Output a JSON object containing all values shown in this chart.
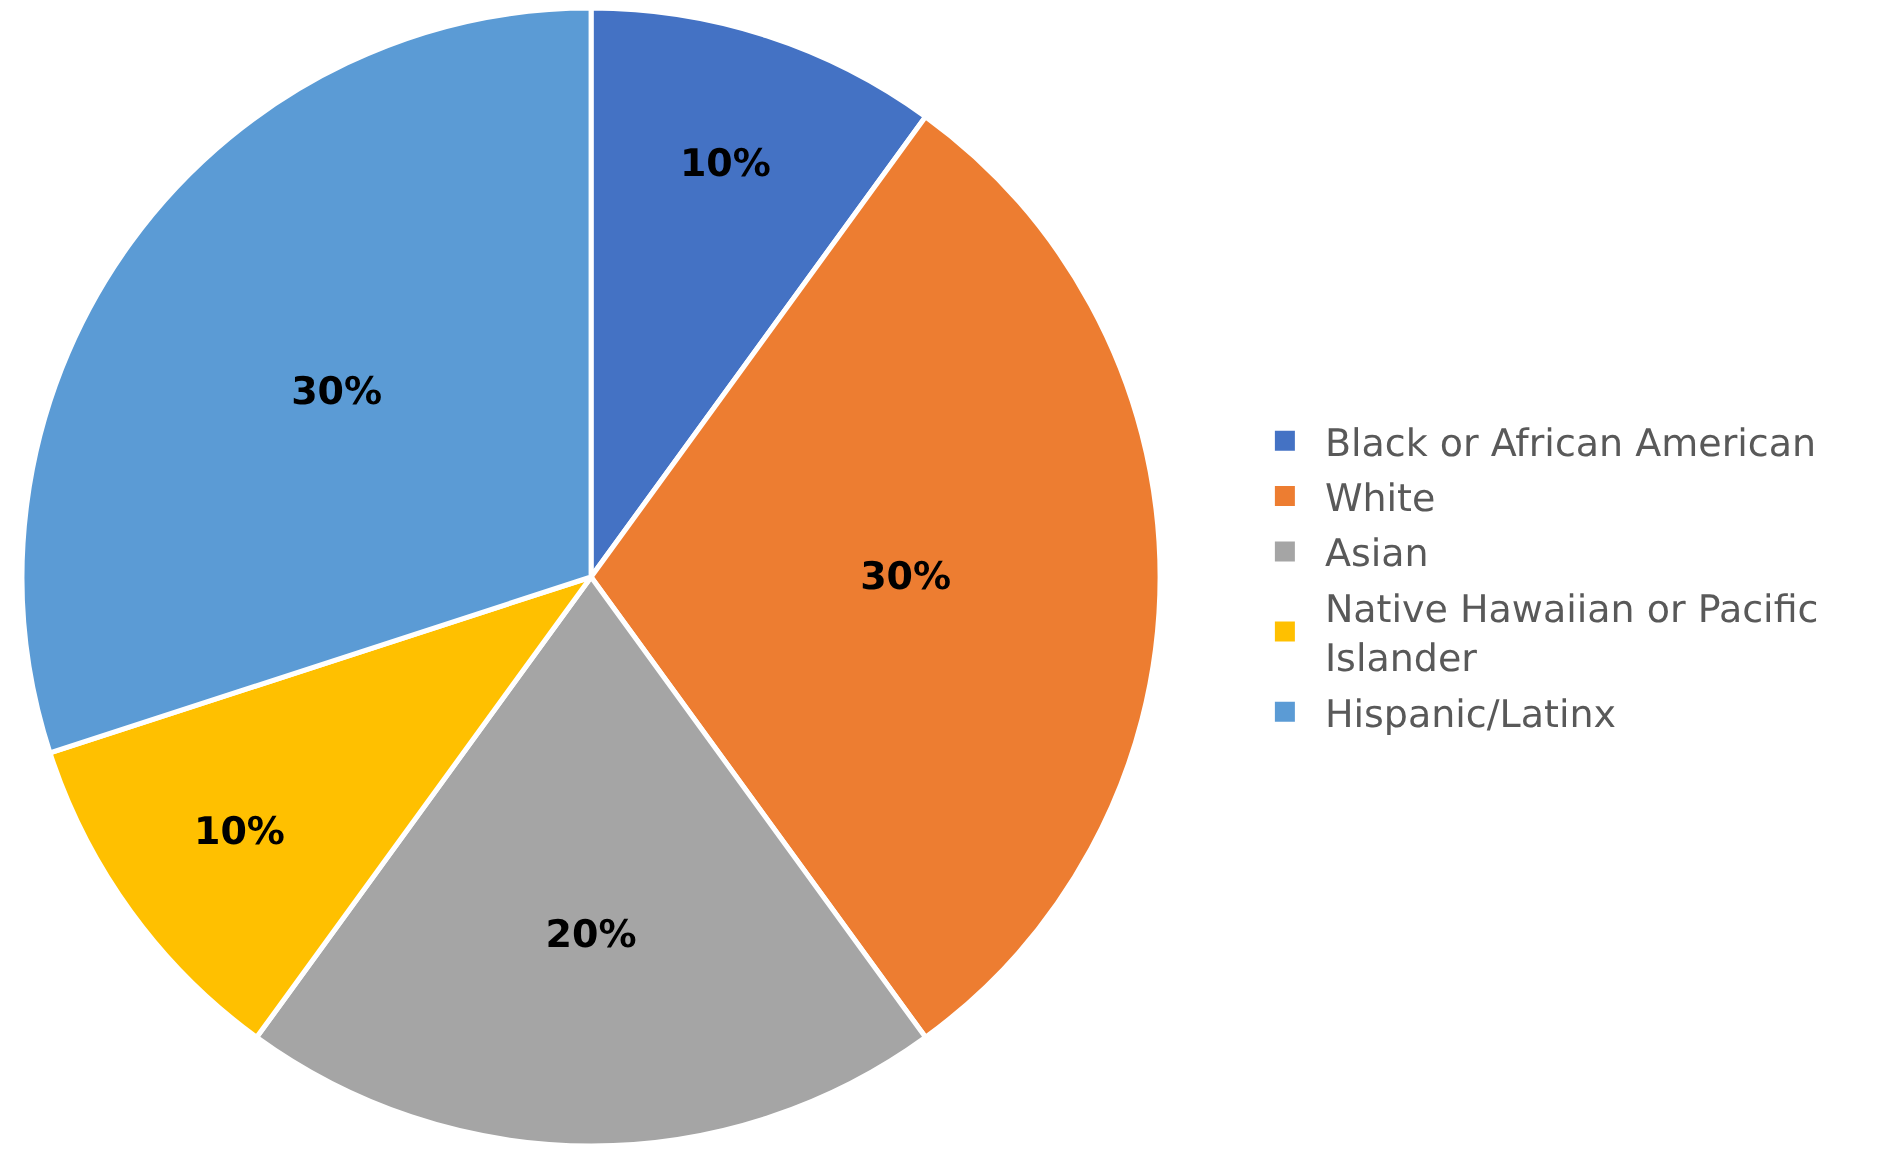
{
  "chart_data": {
    "type": "pie",
    "categories": [
      "Black or African American",
      "White",
      "Asian",
      "Native Hawaiian or Pacific Islander",
      "Hispanic/Latinx"
    ],
    "values": [
      10,
      30,
      20,
      10,
      30
    ],
    "colors": [
      "#4472c4",
      "#ed7d31",
      "#a5a5a5",
      "#ffc000",
      "#5b9bd5"
    ],
    "value_labels": [
      "10%",
      "30%",
      "20%",
      "10%",
      "30%"
    ],
    "legend": "right"
  }
}
